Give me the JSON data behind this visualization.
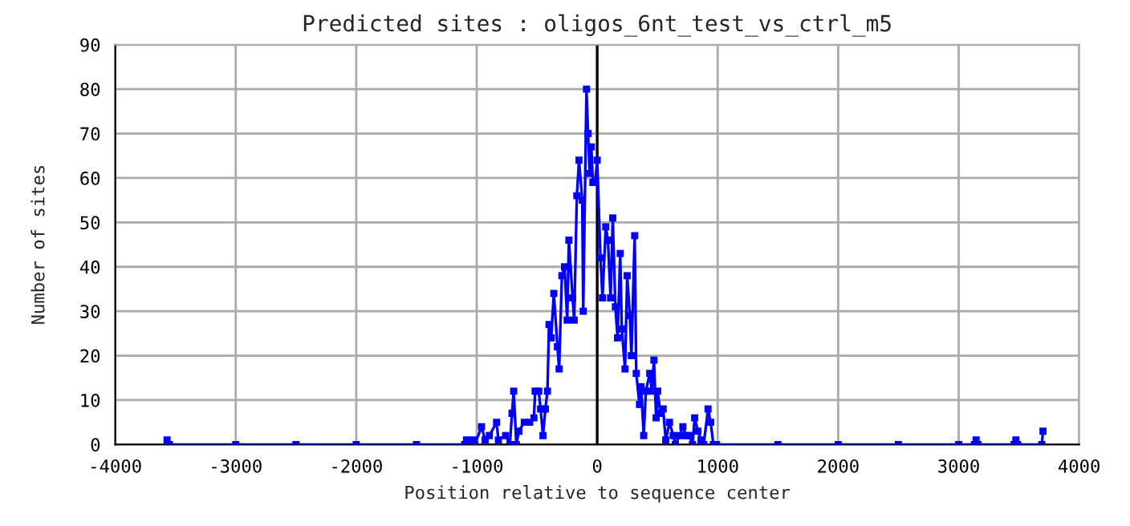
{
  "chart_data": {
    "type": "line",
    "title": "Predicted sites : oligos_6nt_test_vs_ctrl_m5",
    "xlabel": "Position relative to sequence center",
    "ylabel": "Number of sites",
    "x": [
      -3570,
      -3550,
      -3000,
      -2500,
      -2000,
      -1500,
      -1100,
      -1085,
      -1030,
      -1015,
      -960,
      -930,
      -895,
      -835,
      -820,
      -760,
      -725,
      -707,
      -693,
      -671,
      -650,
      -605,
      -560,
      -525,
      -515,
      -485,
      -470,
      -450,
      -430,
      -413,
      -400,
      -382,
      -360,
      -330,
      -316,
      -293,
      -271,
      -249,
      -235,
      -204,
      -191,
      -169,
      -151,
      -124,
      -116,
      -89,
      -76,
      -62,
      -49,
      -36,
      -18,
      0,
      27,
      44,
      71,
      89,
      111,
      129,
      151,
      169,
      191,
      204,
      231,
      249,
      271,
      284,
      311,
      324,
      351,
      364,
      386,
      404,
      436,
      453,
      471,
      489,
      502,
      524,
      547,
      569,
      600,
      631,
      649,
      684,
      711,
      738,
      764,
      791,
      809,
      836,
      862,
      884,
      920,
      942,
      964,
      990,
      1500,
      2000,
      2500,
      3000,
      3130,
      3145,
      3160,
      3460,
      3475,
      3490,
      3690,
      3700
    ],
    "series": [
      {
        "color": "#0000ff",
        "values": [
          1,
          0,
          0,
          0,
          0,
          0,
          0,
          1,
          1,
          0,
          4,
          1,
          2,
          5,
          1,
          2,
          0,
          7,
          12,
          0,
          3,
          5,
          5,
          6,
          12,
          12,
          8,
          2,
          8,
          12,
          27,
          24,
          34,
          22,
          17,
          38,
          40,
          28,
          46,
          33,
          28,
          56,
          64,
          55,
          30,
          80,
          70,
          61,
          67,
          59,
          59,
          64,
          42,
          33,
          49,
          46,
          33,
          51,
          31,
          24,
          43,
          26,
          17,
          38,
          29,
          20,
          47,
          16,
          9,
          13,
          2,
          12,
          16,
          12,
          19,
          6,
          12,
          7,
          8,
          1,
          5,
          2,
          0,
          2,
          4,
          2,
          2,
          0,
          6,
          3,
          1,
          0,
          8,
          5,
          0,
          0,
          0,
          0,
          0,
          0,
          0,
          1,
          0,
          0,
          1,
          0,
          0,
          3
        ]
      }
    ],
    "xlim": [
      -4000,
      4000
    ],
    "xticks": [
      -4000,
      -3000,
      -2000,
      -1000,
      0,
      1000,
      2000,
      3000,
      4000
    ],
    "ylim": [
      0,
      90
    ],
    "yticks": [
      0,
      10,
      20,
      30,
      40,
      50,
      60,
      70,
      80,
      90
    ],
    "grid": true,
    "marker": "square",
    "line_style": "solid",
    "ref_lines": [
      {
        "axis": "x",
        "value": 0,
        "color": "#000000"
      }
    ]
  }
}
